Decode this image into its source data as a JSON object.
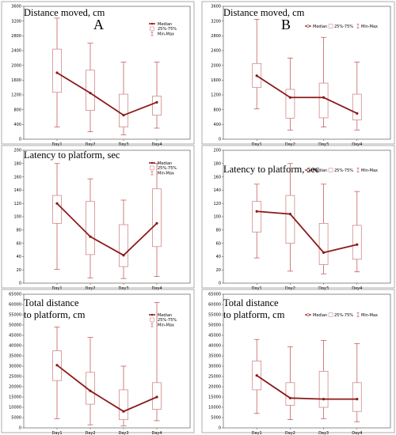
{
  "colors": {
    "line": "#8b1a1a",
    "box": "#d08a8a",
    "whisker": "#c04848",
    "border": "#9a9a9a"
  },
  "legend_default": [
    "Median",
    "25%-75%",
    "Min-Max"
  ],
  "chart_data": [
    {
      "type": "box",
      "panel_label": "A",
      "title": [
        "Distance moved, cm"
      ],
      "legend_layout": "vertical",
      "legend": [
        "Median",
        "25%-75%",
        "Min-Max"
      ],
      "categories": [
        "Day1",
        "Day2",
        "Day3",
        "Day4"
      ],
      "ylim": [
        0,
        3600
      ],
      "yticks": [
        0,
        400,
        800,
        1200,
        1600,
        2000,
        2400,
        2800,
        3200,
        3600
      ],
      "median": [
        1800,
        1250,
        650,
        1000
      ],
      "q1": [
        1270,
        780,
        330,
        650
      ],
      "q3": [
        2440,
        1870,
        1220,
        1170
      ],
      "min": [
        330,
        200,
        120,
        300
      ],
      "max": [
        3280,
        2600,
        2090,
        2090
      ]
    },
    {
      "type": "box",
      "panel_label": "B",
      "title": [
        "Distance moved, cm"
      ],
      "legend_layout": "horizontal",
      "legend": [
        "Median",
        "25%-75%",
        "Min-Max"
      ],
      "categories": [
        "Day1",
        "Day2",
        "Day3",
        "Day4"
      ],
      "ylim": [
        0,
        3600
      ],
      "yticks": [
        0,
        400,
        800,
        1200,
        1600,
        2000,
        2400,
        2800,
        3200,
        3600
      ],
      "median": [
        1720,
        1130,
        1130,
        700
      ],
      "q1": [
        1400,
        570,
        580,
        520
      ],
      "q3": [
        2050,
        1350,
        1520,
        1220
      ],
      "min": [
        820,
        250,
        330,
        250
      ],
      "max": [
        3250,
        2200,
        2760,
        2090
      ]
    },
    {
      "type": "box",
      "title": [
        "Latency to platform, sec"
      ],
      "legend_layout": "vertical",
      "legend": [
        "Median",
        "25%-75%",
        "Min-Max"
      ],
      "categories": [
        "Day1",
        "Day2",
        "Day3",
        "Day4"
      ],
      "ylim": [
        0,
        200
      ],
      "yticks": [
        0,
        20,
        40,
        60,
        80,
        100,
        120,
        140,
        160,
        180,
        200
      ],
      "median": [
        120,
        70,
        42,
        90
      ],
      "q1": [
        90,
        43,
        25,
        55
      ],
      "q3": [
        132,
        123,
        88,
        142
      ],
      "min": [
        21,
        8,
        7,
        10
      ],
      "max": [
        180,
        157,
        125,
        180
      ]
    },
    {
      "type": "box",
      "title": [
        "Latency to platform, sec"
      ],
      "legend_layout": "horizontal",
      "legend": [
        "Median",
        "25%-75%",
        "Min-Max"
      ],
      "categories": [
        "Day1",
        "Day2",
        "Day3",
        "Day4"
      ],
      "ylim": [
        0,
        200
      ],
      "yticks": [
        0,
        20,
        40,
        60,
        80,
        100,
        120,
        140,
        160,
        180,
        200
      ],
      "median": [
        108,
        104,
        46,
        58
      ],
      "q1": [
        77,
        60,
        28,
        36
      ],
      "q3": [
        123,
        132,
        90,
        87
      ],
      "min": [
        38,
        18,
        14,
        17
      ],
      "max": [
        149,
        180,
        149,
        138
      ]
    },
    {
      "type": "box",
      "title": [
        "Total distance",
        "to platform, cm"
      ],
      "legend_layout": "vertical",
      "legend": [
        "Median",
        "25%-75%",
        "Min-Max"
      ],
      "categories": [
        "Day1",
        "Day2",
        "Day3",
        "Day4"
      ],
      "ylim": [
        0,
        65000
      ],
      "yticks": [
        0,
        5000,
        10000,
        15000,
        20000,
        25000,
        30000,
        35000,
        40000,
        45000,
        50000,
        55000,
        60000,
        65000
      ],
      "median": [
        30500,
        18000,
        8000,
        15000
      ],
      "q1": [
        23000,
        11500,
        4000,
        9000
      ],
      "q3": [
        37500,
        27000,
        18500,
        22000
      ],
      "min": [
        4500,
        1500,
        1000,
        3500
      ],
      "max": [
        49000,
        44000,
        30000,
        61000
      ]
    },
    {
      "type": "box",
      "title": [
        "Total distance",
        "to platform, cm"
      ],
      "legend_layout": "horizontal",
      "legend": [
        "Median",
        "25%-75%",
        "Min-Max"
      ],
      "categories": [
        "Day1",
        "Day2",
        "Day3",
        "Day4"
      ],
      "ylim": [
        0,
        65000
      ],
      "yticks": [
        0,
        5000,
        10000,
        15000,
        20000,
        25000,
        30000,
        35000,
        40000,
        45000,
        50000,
        55000,
        60000,
        65000
      ],
      "median": [
        25500,
        14500,
        14000,
        14000
      ],
      "q1": [
        18500,
        11000,
        10000,
        8000
      ],
      "q3": [
        32500,
        22000,
        27500,
        22000
      ],
      "min": [
        7000,
        4000,
        4500,
        3000
      ],
      "max": [
        43000,
        39500,
        42500,
        41000
      ]
    }
  ]
}
